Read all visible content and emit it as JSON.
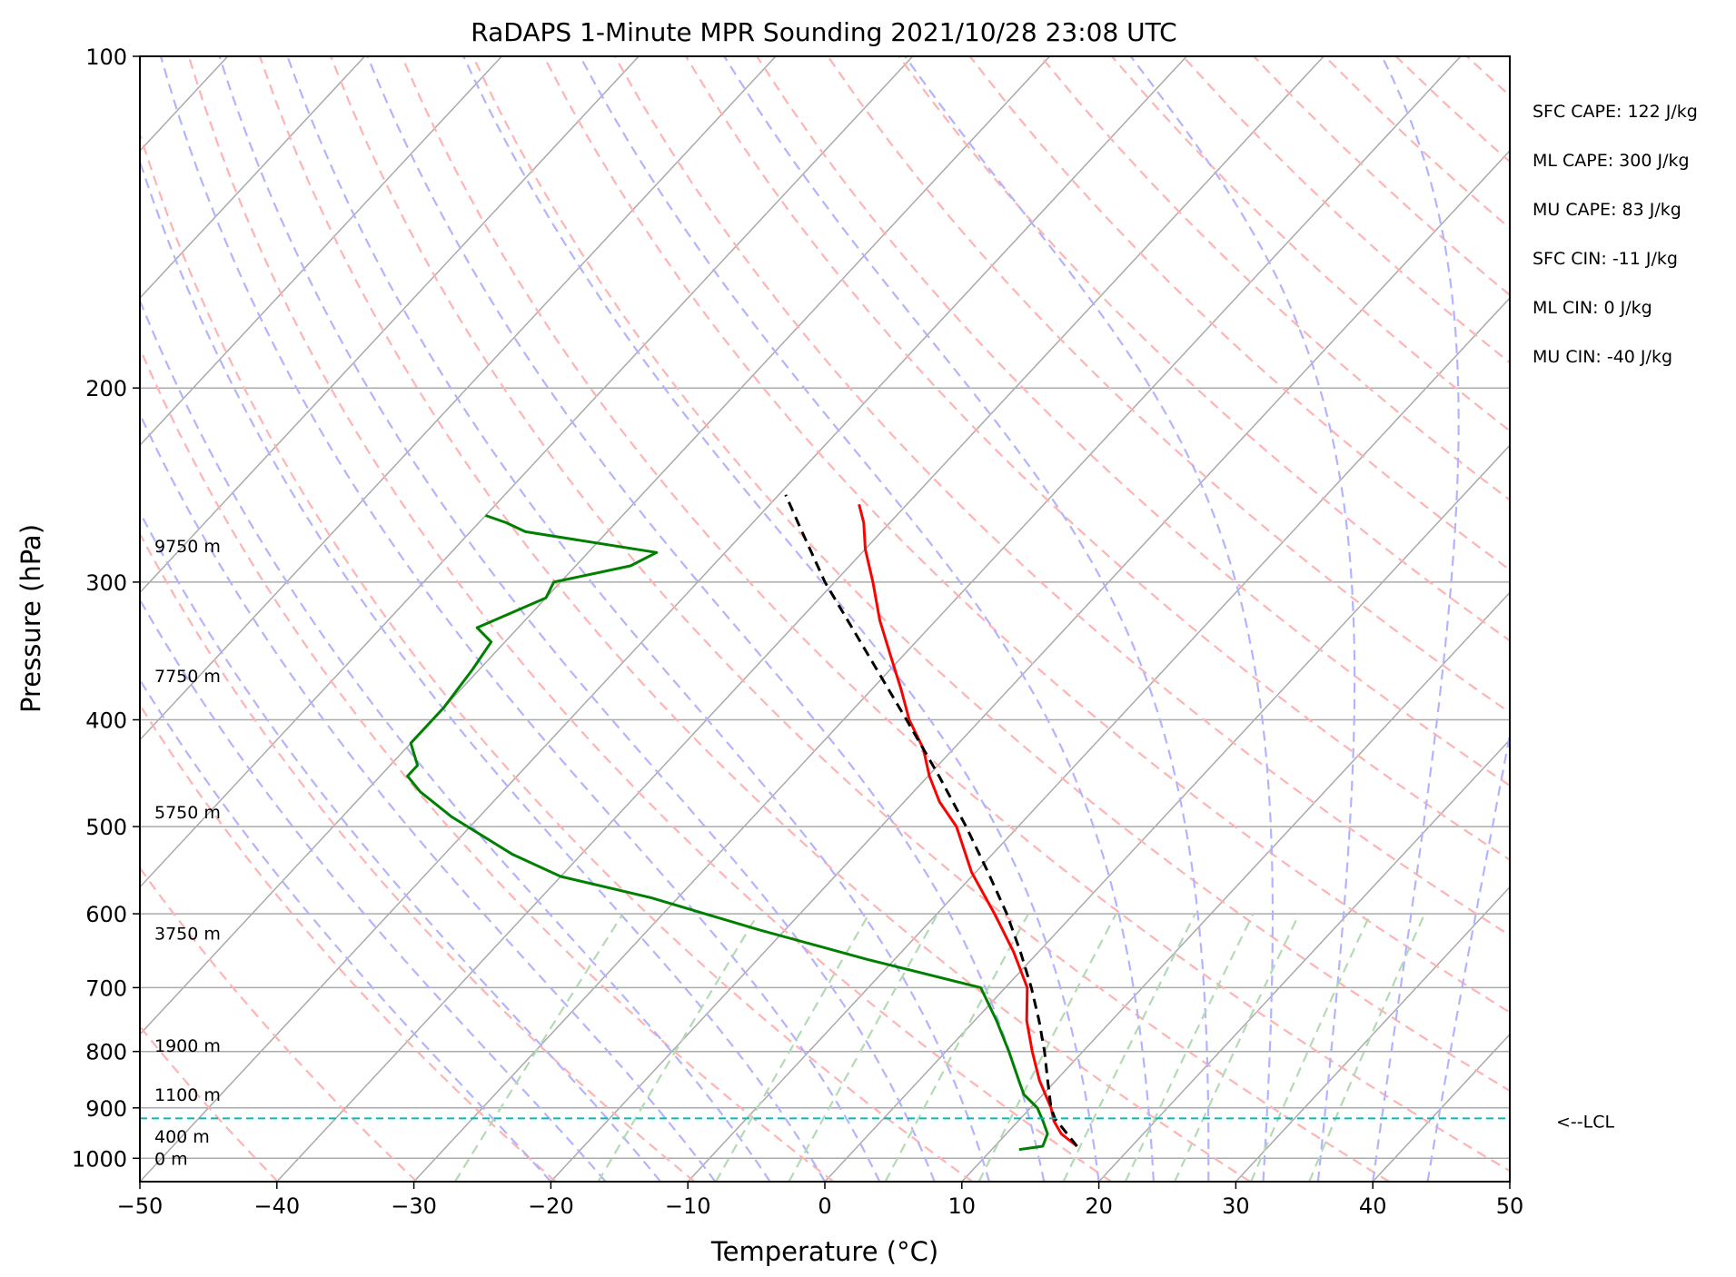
{
  "chart_data": {
    "type": "line",
    "title": "RaDAPS 1-Minute MPR Sounding 2021/10/28 23:08 UTC",
    "xlabel": "Temperature (°C)",
    "ylabel": "Pressure (hPa)",
    "xlim": [
      -50,
      50
    ],
    "ylim": [
      1050,
      100
    ],
    "y_scale": "log",
    "x_ticks": [
      -50,
      -40,
      -30,
      -20,
      -10,
      0,
      10,
      20,
      30,
      40,
      50
    ],
    "x_tick_labels": [
      "−50",
      "−40",
      "−30",
      "−20",
      "−10",
      "0",
      "10",
      "20",
      "30",
      "40",
      "50"
    ],
    "y_ticks": [
      100,
      200,
      300,
      400,
      500,
      600,
      700,
      800,
      900,
      1000
    ],
    "y_tick_labels": [
      "100",
      "200",
      "300",
      "400",
      "500",
      "600",
      "700",
      "800",
      "900",
      "1000"
    ],
    "grid": true,
    "series": [
      {
        "role": "temperature",
        "color": "#ff0000",
        "style": "solid",
        "points": [
          {
            "p": 975,
            "t": 16.0
          },
          {
            "p": 950,
            "t": 14.0
          },
          {
            "p": 925,
            "t": 12.6
          },
          {
            "p": 900,
            "t": 11.5
          },
          {
            "p": 850,
            "t": 8.8
          },
          {
            "p": 800,
            "t": 6.3
          },
          {
            "p": 750,
            "t": 3.8
          },
          {
            "p": 700,
            "t": 1.6
          },
          {
            "p": 650,
            "t": -1.8
          },
          {
            "p": 600,
            "t": -5.8
          },
          {
            "p": 550,
            "t": -10.3
          },
          {
            "p": 500,
            "t": -14.5
          },
          {
            "p": 475,
            "t": -17.4
          },
          {
            "p": 450,
            "t": -19.9
          },
          {
            "p": 425,
            "t": -22.2
          },
          {
            "p": 400,
            "t": -25.2
          },
          {
            "p": 375,
            "t": -27.9
          },
          {
            "p": 350,
            "t": -30.9
          },
          {
            "p": 325,
            "t": -34.1
          },
          {
            "p": 300,
            "t": -37.2
          },
          {
            "p": 280,
            "t": -40.0
          },
          {
            "p": 265,
            "t": -41.9
          },
          {
            "p": 255,
            "t": -43.5
          }
        ]
      },
      {
        "role": "dewpoint",
        "color": "#008000",
        "style": "solid",
        "points": [
          {
            "p": 982,
            "t": 12.0
          },
          {
            "p": 975,
            "t": 13.5
          },
          {
            "p": 950,
            "t": 13.0
          },
          {
            "p": 925,
            "t": 11.8
          },
          {
            "p": 900,
            "t": 10.5
          },
          {
            "p": 875,
            "t": 8.6
          },
          {
            "p": 850,
            "t": 7.3
          },
          {
            "p": 800,
            "t": 4.6
          },
          {
            "p": 750,
            "t": 1.6
          },
          {
            "p": 700,
            "t": -1.8
          },
          {
            "p": 660,
            "t": -12.0
          },
          {
            "p": 620,
            "t": -22.0
          },
          {
            "p": 580,
            "t": -32.0
          },
          {
            "p": 555,
            "t": -40.0
          },
          {
            "p": 530,
            "t": -45.0
          },
          {
            "p": 490,
            "t": -52.0
          },
          {
            "p": 465,
            "t": -56.0
          },
          {
            "p": 450,
            "t": -58.0
          },
          {
            "p": 440,
            "t": -58.0
          },
          {
            "p": 420,
            "t": -60.0
          },
          {
            "p": 390,
            "t": -60.0
          },
          {
            "p": 360,
            "t": -60.5
          },
          {
            "p": 340,
            "t": -61.0
          },
          {
            "p": 330,
            "t": -63.0
          },
          {
            "p": 310,
            "t": -60.0
          },
          {
            "p": 300,
            "t": -60.5
          },
          {
            "p": 290,
            "t": -56.0
          },
          {
            "p": 282,
            "t": -55.0
          },
          {
            "p": 270,
            "t": -66.0
          },
          {
            "p": 265,
            "t": -68.0
          },
          {
            "p": 261,
            "t": -70.0
          }
        ]
      },
      {
        "role": "parcel",
        "color": "#000000",
        "style": "dashed",
        "points": [
          {
            "p": 975,
            "t": 16.0
          },
          {
            "p": 920,
            "t": 12.5
          },
          {
            "p": 900,
            "t": 11.5
          },
          {
            "p": 850,
            "t": 9.4
          },
          {
            "p": 800,
            "t": 7.2
          },
          {
            "p": 750,
            "t": 4.7
          },
          {
            "p": 700,
            "t": 1.9
          },
          {
            "p": 650,
            "t": -1.3
          },
          {
            "p": 600,
            "t": -4.9
          },
          {
            "p": 550,
            "t": -9.1
          },
          {
            "p": 500,
            "t": -13.8
          },
          {
            "p": 450,
            "t": -19.2
          },
          {
            "p": 400,
            "t": -25.4
          },
          {
            "p": 350,
            "t": -32.5
          },
          {
            "p": 300,
            "t": -40.7
          },
          {
            "p": 270,
            "t": -45.8
          },
          {
            "p": 250,
            "t": -49.5
          }
        ]
      }
    ],
    "lcl": {
      "p": 920,
      "label": "<--LCL",
      "color": "#00bbbb"
    },
    "height_labels": [
      {
        "p": 1000,
        "label": "0 m"
      },
      {
        "p": 955,
        "label": "400 m"
      },
      {
        "p": 875,
        "label": "1100 m"
      },
      {
        "p": 790,
        "label": "1900 m"
      },
      {
        "p": 625,
        "label": "3750 m"
      },
      {
        "p": 485,
        "label": "5750 m"
      },
      {
        "p": 365,
        "label": "7750 m"
      },
      {
        "p": 278,
        "label": "9750 m"
      }
    ],
    "stats": [
      "SFC CAPE: 122 J/kg",
      "ML CAPE: 300 J/kg",
      "MU CAPE: 83 J/kg",
      "SFC CIN: -11 J/kg",
      "ML CIN: 0 J/kg",
      "MU CIN: -40 J/kg"
    ],
    "background_lines": {
      "isotherm_color": "#aaaaaa",
      "dry_adiabat_color": "#ffb3b3",
      "moist_adiabat_color": "#b3b3ff",
      "mixing_ratio_color": "#b3dab3"
    }
  }
}
